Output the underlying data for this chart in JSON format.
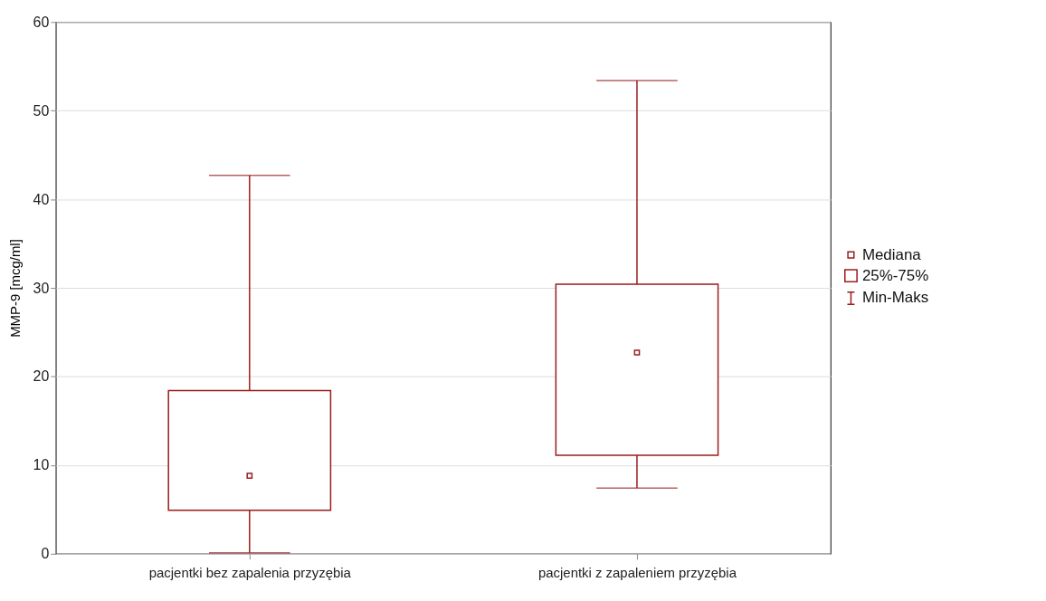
{
  "chart_data": {
    "type": "box",
    "ylabel": "MMP-9 [mcg/ml]",
    "categories": [
      "pacjentki bez zapalenia przyzębia",
      "pacjentki z zapaleniem przyzębia"
    ],
    "series": [
      {
        "color": "#9b1c1c",
        "boxes": [
          {
            "low": 0.1,
            "q1": 4.9,
            "median": 8.8,
            "q3": 18.4,
            "high": 42.7
          },
          {
            "low": 7.4,
            "q1": 11.1,
            "median": 22.7,
            "q3": 30.4,
            "high": 53.4
          }
        ]
      }
    ],
    "ylim": [
      0,
      60
    ],
    "yticks": [
      0,
      10,
      20,
      30,
      40,
      50,
      60
    ],
    "grid": "y",
    "annotations": [
      "Mediana",
      "25%-75%",
      "Min-Maks"
    ]
  }
}
